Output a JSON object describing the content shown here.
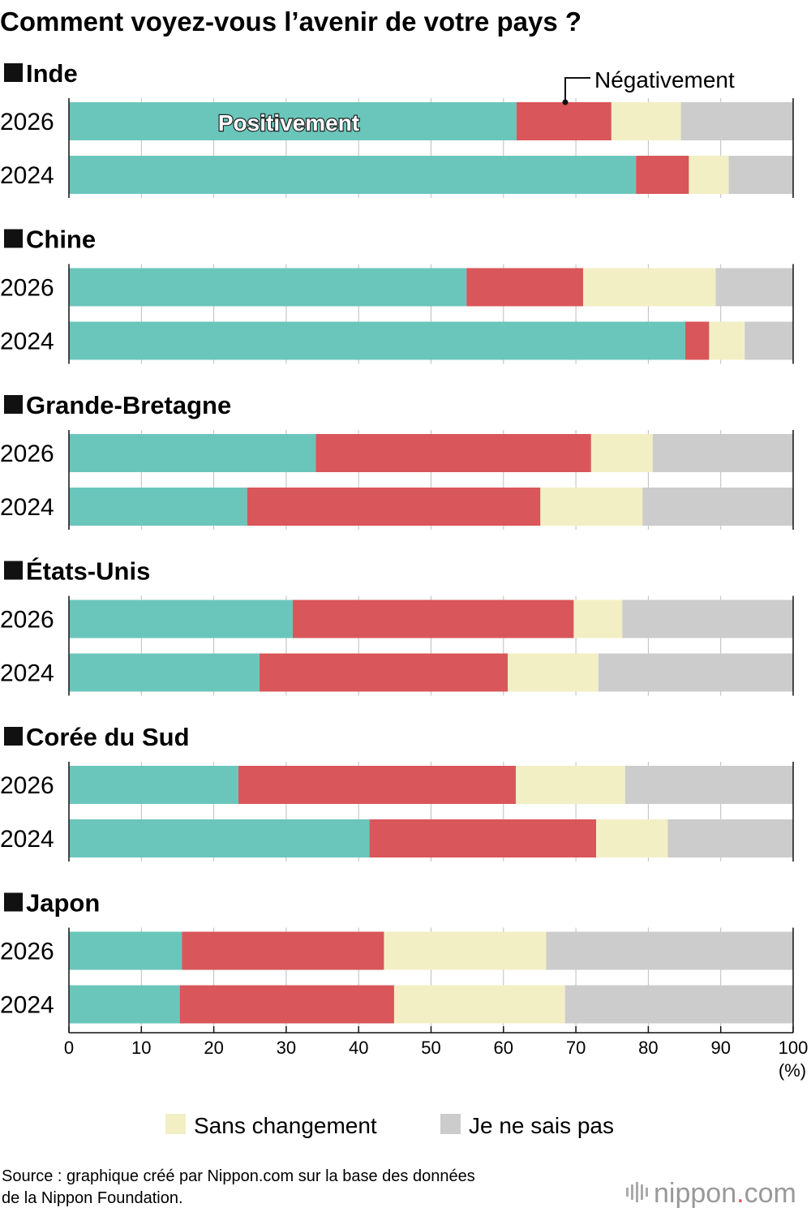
{
  "title": "Comment voyez-vous l’avenir de votre pays ?",
  "chart_data": {
    "type": "bar",
    "orientation": "horizontal",
    "stacked": true,
    "xlim": [
      0,
      100
    ],
    "xticks": [
      "0",
      "10",
      "20",
      "30",
      "40",
      "50",
      "60",
      "70",
      "80",
      "90",
      "100"
    ],
    "unit": "(%)",
    "grid": true,
    "series": [
      {
        "name": "Positivement",
        "color": "#6ac6bb"
      },
      {
        "name": "Négativement",
        "color": "#d9565a"
      },
      {
        "name": "Sans changement",
        "color": "#f3efc4"
      },
      {
        "name": "Je ne sais pas",
        "color": "#cccccc"
      }
    ],
    "groups": [
      {
        "country": "Inde",
        "bars": [
          {
            "year": "2026",
            "values": [
              61.8,
              13.1,
              9.6,
              15.5
            ]
          },
          {
            "year": "2024",
            "values": [
              78.3,
              7.3,
              5.5,
              8.9
            ]
          }
        ]
      },
      {
        "country": "Chine",
        "bars": [
          {
            "year": "2026",
            "values": [
              54.9,
              16.1,
              18.3,
              10.7
            ]
          },
          {
            "year": "2024",
            "values": [
              85.1,
              3.3,
              4.9,
              6.7
            ]
          }
        ]
      },
      {
        "country": "Grande-Bretagne",
        "bars": [
          {
            "year": "2026",
            "values": [
              34.1,
              38.0,
              8.5,
              19.4
            ]
          },
          {
            "year": "2024",
            "values": [
              24.6,
              40.5,
              14.1,
              20.8
            ]
          }
        ]
      },
      {
        "country": "États-Unis",
        "bars": [
          {
            "year": "2026",
            "values": [
              30.9,
              38.8,
              6.7,
              23.6
            ]
          },
          {
            "year": "2024",
            "values": [
              26.3,
              34.3,
              12.5,
              26.9
            ]
          }
        ]
      },
      {
        "country": "Corée du Sud",
        "bars": [
          {
            "year": "2026",
            "values": [
              23.4,
              38.3,
              15.1,
              23.2
            ]
          },
          {
            "year": "2024",
            "values": [
              41.5,
              31.3,
              9.9,
              17.3
            ]
          }
        ]
      },
      {
        "country": "Japon",
        "bars": [
          {
            "year": "2026",
            "values": [
              15.6,
              27.9,
              22.4,
              34.1
            ]
          },
          {
            "year": "2024",
            "values": [
              15.3,
              29.6,
              23.6,
              31.5
            ]
          }
        ]
      }
    ],
    "legend_position": "bottom"
  },
  "labels": {
    "positive_in_bar": "Positivement",
    "negative_callout": "Négativement"
  },
  "source": {
    "line1": "Source : graphique créé par Nippon.com sur la base des données",
    "line2": "de la Nippon Foundation."
  },
  "brand": {
    "name": "nippon",
    "dot": ".",
    "tld": "com",
    "dot_color": "#d9565a",
    "text_color": "#999999"
  }
}
